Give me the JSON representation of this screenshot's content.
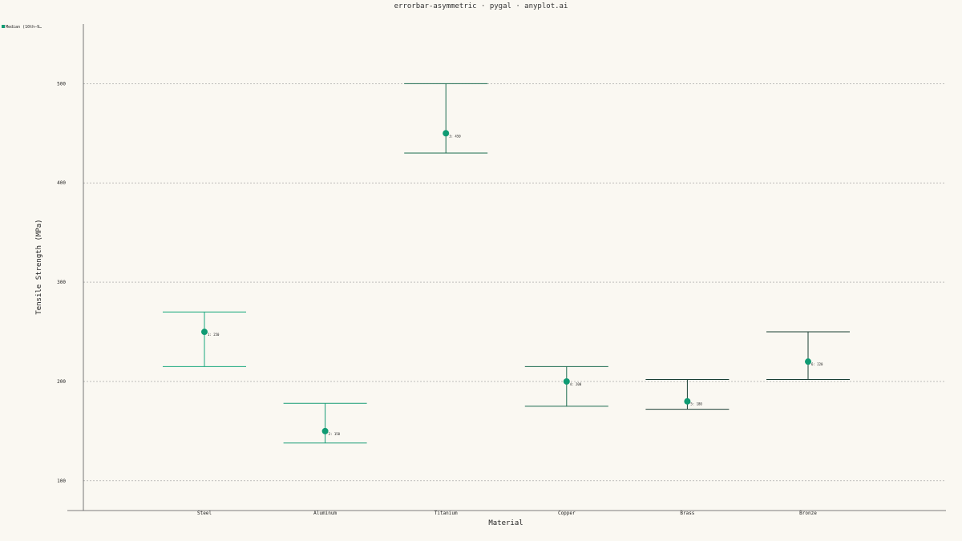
{
  "chart_data": {
    "type": "errorbar",
    "title": "errorbar-asymmetric · pygal · anyplot.ai",
    "xlabel": "Material",
    "ylabel": "Tensile Strength (MPa)",
    "legend": {
      "placement": "top-left",
      "label": "Median (10th–9…",
      "color": "#0f9b73"
    },
    "grid": true,
    "ylim": [
      70,
      560
    ],
    "yticks": [
      100,
      200,
      300,
      400,
      500
    ],
    "categories": [
      "Steel",
      "Aluminum",
      "Titanium",
      "Copper",
      "Brass",
      "Bronze"
    ],
    "series": [
      {
        "name": "Median (10th–9…",
        "values": [
          250,
          150,
          450,
          200,
          180,
          220
        ],
        "lower": [
          215,
          138,
          430,
          175,
          172,
          202
        ],
        "upper": [
          270,
          178,
          500,
          215,
          202,
          250
        ],
        "labels": [
          "1: 250",
          "2: 150",
          "3: 450",
          "4: 200",
          "5: 180",
          "6: 220"
        ]
      }
    ],
    "colors": {
      "point": "#0f9b73",
      "errorbars": [
        "#18a77d",
        "#169c75",
        "#1b6b4f",
        "#1b6b4f",
        "#1a3f34",
        "#1a3f34"
      ],
      "background": "#faf8f2",
      "grid": "#9a9a9a",
      "axis": "#555555"
    }
  }
}
